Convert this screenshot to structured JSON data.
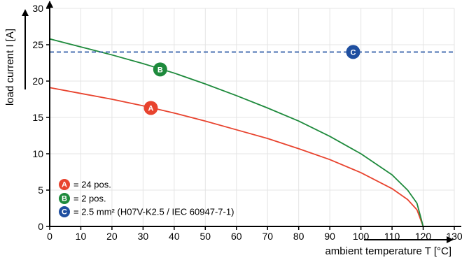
{
  "chart_data": {
    "type": "line",
    "xlabel": "ambient temperature T [°C]",
    "ylabel": "load current I [A]",
    "xlim": [
      0,
      130
    ],
    "ylim": [
      0,
      30
    ],
    "x_ticks": [
      "0",
      "10",
      "20",
      "30",
      "40",
      "50",
      "60",
      "70",
      "80",
      "90",
      "100",
      "110",
      "120",
      "130"
    ],
    "y_ticks": [
      "0",
      "5",
      "10",
      "15",
      "20",
      "25",
      "30"
    ],
    "grid": true,
    "legend_placement": "bottom-left",
    "series": [
      {
        "key": "A",
        "name": "= 24 pos.",
        "color": "#e8432e",
        "x": [
          0,
          10,
          20,
          30,
          40,
          50,
          60,
          70,
          80,
          90,
          100,
          110,
          115,
          118,
          120
        ],
        "y": [
          19.1,
          18.3,
          17.5,
          16.6,
          15.6,
          14.5,
          13.3,
          12.1,
          10.7,
          9.2,
          7.4,
          5.2,
          3.7,
          2.3,
          0.0
        ]
      },
      {
        "key": "B",
        "name": "= 2 pos.",
        "color": "#1e8a3c",
        "x": [
          0,
          10,
          20,
          30,
          40,
          50,
          60,
          70,
          80,
          90,
          100,
          110,
          115,
          118,
          120
        ],
        "y": [
          25.8,
          24.7,
          23.6,
          22.4,
          21.1,
          19.6,
          18.0,
          16.3,
          14.5,
          12.4,
          10.0,
          7.1,
          5.0,
          3.2,
          0.0
        ]
      },
      {
        "key": "C",
        "name": "= 2.5 mm² (H07V-K2.5 / IEC 60947-7-1)",
        "color": "#1f4fa0",
        "x": [
          0,
          130
        ],
        "y": [
          24,
          24
        ],
        "dashed": true
      }
    ],
    "annotations": [
      {
        "key": "A",
        "text": "A",
        "x": 32.5,
        "y": 16.3,
        "color": "#e8432e"
      },
      {
        "key": "B",
        "text": "B",
        "x": 35.5,
        "y": 21.6,
        "color": "#1e8a3c"
      },
      {
        "key": "C",
        "text": "C",
        "x": 97.5,
        "y": 24.0,
        "color": "#1f4fa0"
      }
    ]
  }
}
